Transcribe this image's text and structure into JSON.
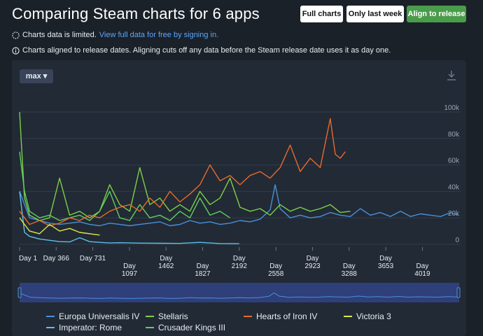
{
  "header": {
    "title": "Comparing Steam charts for 6 apps",
    "buttons": {
      "full_charts": "Full charts",
      "only_last_week": "Only last week",
      "align_to_release": "Align to release"
    }
  },
  "notices": {
    "limited_text": "Charts data is limited.",
    "limited_link": "View full data for free by signing in.",
    "aligned_text": "Charts aligned to release dates. Aligning cuts off any data before the Steam release date uses it as day one."
  },
  "controls": {
    "range": "max ▾",
    "download_icon": "download-icon"
  },
  "colors": {
    "Europa Universalis IV": "#4a90d9",
    "Imperator: Rome": "#5bc0eb",
    "Stellaris": "#7dcf4a",
    "Crusader Kings III": "#5fd05f",
    "Hearts of Iron IV": "#e86a2c",
    "Victoria 3": "#d9e84a"
  },
  "chart_data": {
    "type": "line",
    "xlabel": "",
    "ylabel": "",
    "x_ticks": [
      "Day 1",
      "Day 366",
      "Day 731",
      "Day 1097",
      "Day 1462",
      "Day 1827",
      "Day 2192",
      "Day 2558",
      "Day 2923",
      "Day 3288",
      "Day 3653",
      "Day 4019"
    ],
    "y_ticks": [
      "0",
      "20k",
      "40k",
      "60k",
      "80k",
      "100k"
    ],
    "ylim": [
      0,
      100000
    ],
    "xlim": [
      1,
      4400
    ],
    "legend_placement": "bottom",
    "series": [
      {
        "name": "Europa Universalis IV",
        "x": [
          1,
          100,
          200,
          300,
          400,
          500,
          600,
          700,
          800,
          900,
          1000,
          1100,
          1200,
          1300,
          1400,
          1500,
          1600,
          1700,
          1800,
          1900,
          2000,
          2100,
          2200,
          2300,
          2400,
          2500,
          2550,
          2600,
          2700,
          2800,
          2900,
          3000,
          3100,
          3200,
          3300,
          3400,
          3500,
          3600,
          3700,
          3800,
          3900,
          4000,
          4100,
          4200,
          4300,
          4400
        ],
        "y": [
          40000,
          20000,
          18000,
          16000,
          15000,
          16000,
          17000,
          15000,
          14000,
          16000,
          15000,
          14000,
          15000,
          16000,
          17000,
          14000,
          15000,
          18000,
          16000,
          17000,
          15000,
          16000,
          18000,
          17000,
          19000,
          26000,
          45000,
          27000,
          20000,
          22000,
          20000,
          21000,
          24000,
          22000,
          21000,
          27000,
          22000,
          24000,
          21000,
          25000,
          21000,
          23000,
          22000,
          21000,
          24000,
          22000
        ]
      },
      {
        "name": "Imperator: Rome",
        "x": [
          1,
          50,
          100,
          200,
          300,
          400,
          500,
          600,
          700,
          800,
          900,
          1000,
          1200,
          1400,
          1600,
          1800,
          2000,
          2100,
          2192
        ],
        "y": [
          40000,
          9000,
          6000,
          4000,
          3000,
          2000,
          1800,
          5000,
          2000,
          1500,
          1000,
          1200,
          900,
          800,
          700,
          1500,
          600,
          500,
          400
        ]
      },
      {
        "name": "Stellaris",
        "x": [
          1,
          50,
          100,
          200,
          300,
          400,
          500,
          600,
          700,
          800,
          900,
          1000,
          1100,
          1200,
          1300,
          1400,
          1500,
          1600,
          1700,
          1800,
          1900,
          2000,
          2100,
          2200,
          2300,
          2400,
          2500,
          2600,
          2700,
          2800,
          2900,
          3000,
          3100,
          3200,
          3300
        ],
        "y": [
          100000,
          35000,
          22000,
          18000,
          20000,
          50000,
          22000,
          25000,
          20000,
          25000,
          45000,
          30000,
          25000,
          58000,
          30000,
          35000,
          25000,
          30000,
          25000,
          40000,
          30000,
          35000,
          50000,
          28000,
          25000,
          27000,
          22000,
          30000,
          25000,
          28000,
          25000,
          27000,
          30000,
          24000,
          25000
        ]
      },
      {
        "name": "Crusader Kings III",
        "x": [
          1,
          50,
          100,
          200,
          300,
          400,
          500,
          600,
          700,
          800,
          900,
          1000,
          1100,
          1200,
          1300,
          1400,
          1500,
          1600,
          1700,
          1800,
          1900,
          2000,
          2100
        ],
        "y": [
          70000,
          40000,
          25000,
          20000,
          22000,
          18000,
          20000,
          22000,
          18000,
          25000,
          40000,
          20000,
          18000,
          30000,
          20000,
          22000,
          18000,
          25000,
          20000,
          35000,
          22000,
          25000,
          20000
        ]
      },
      {
        "name": "Hearts of Iron IV",
        "x": [
          1,
          100,
          200,
          300,
          400,
          500,
          600,
          700,
          800,
          900,
          1000,
          1100,
          1200,
          1300,
          1400,
          1500,
          1600,
          1700,
          1800,
          1900,
          2000,
          2100,
          2200,
          2300,
          2400,
          2500,
          2600,
          2700,
          2800,
          2900,
          3000,
          3100,
          3150,
          3200,
          3250
        ],
        "y": [
          25000,
          15000,
          18000,
          14000,
          16000,
          20000,
          18000,
          22000,
          20000,
          25000,
          28000,
          30000,
          25000,
          35000,
          28000,
          40000,
          32000,
          38000,
          45000,
          60000,
          48000,
          52000,
          45000,
          52000,
          55000,
          50000,
          58000,
          75000,
          55000,
          65000,
          58000,
          95000,
          68000,
          65000,
          70000
        ]
      },
      {
        "name": "Victoria 3",
        "x": [
          1,
          50,
          100,
          200,
          300,
          400,
          500,
          600,
          700,
          800
        ],
        "y": [
          20000,
          15000,
          10000,
          8000,
          15000,
          10000,
          12000,
          9000,
          8000,
          7000
        ]
      }
    ]
  },
  "legend": [
    {
      "name": "Europa Universalis IV",
      "color": "#4a90d9"
    },
    {
      "name": "Stellaris",
      "color": "#7dcf4a"
    },
    {
      "name": "Hearts of Iron IV",
      "color": "#e86a2c"
    },
    {
      "name": "Victoria 3",
      "color": "#d9e84a"
    },
    {
      "name": "Imperator: Rome",
      "color": "#5bc0eb"
    },
    {
      "name": "Crusader Kings III",
      "color": "#5fd05f"
    }
  ]
}
